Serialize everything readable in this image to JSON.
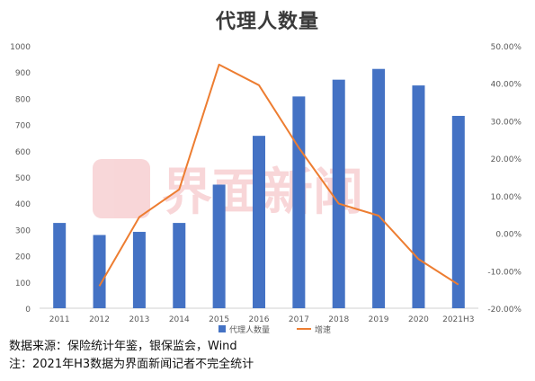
{
  "chart_data": {
    "type": "bar",
    "title": "代理人数量",
    "categories": [
      "2011",
      "2012",
      "2013",
      "2014",
      "2015",
      "2016",
      "2017",
      "2018",
      "2019",
      "2020",
      "2021H3"
    ],
    "series": [
      {
        "name": "代理人数量",
        "type": "bar",
        "axis": "left",
        "color": "#4472c4",
        "values": [
          325,
          279,
          291,
          325,
          471,
          657,
          807,
          871,
          912,
          849,
          733
        ]
      },
      {
        "name": "增速",
        "type": "line",
        "axis": "right",
        "color": "#ed7d31",
        "values": [
          null,
          -14.1,
          4.3,
          11.7,
          45.0,
          39.5,
          22.8,
          7.9,
          4.7,
          -6.9,
          -13.7
        ]
      }
    ],
    "ylim_left": [
      0,
      1000
    ],
    "yticks_left": [
      0,
      100,
      200,
      300,
      400,
      500,
      600,
      700,
      800,
      900,
      1000
    ],
    "ylim_right": [
      -20,
      50
    ],
    "yticks_right": [
      "-20.00%",
      "-10.00%",
      "0.00%",
      "10.00%",
      "20.00%",
      "30.00%",
      "40.00%",
      "50.00%"
    ],
    "legend_position": "bottom",
    "grid": false
  },
  "watermark": {
    "text": "界面新闻"
  },
  "notes": {
    "source": "数据来源：保险统计年鉴，银保监会，Wind",
    "remark": "注：2021年H3数据为界面新闻记者不完全统计"
  }
}
